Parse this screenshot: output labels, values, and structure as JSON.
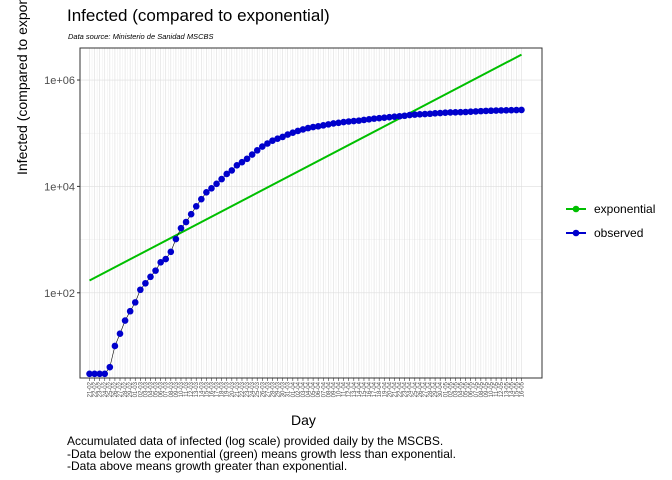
{
  "header": {
    "title": "Infected (compared to exponential)",
    "source": "Data source: Ministerio de Sanidad MSCBS"
  },
  "caption": {
    "line1": "Accumulated data of infected (log scale) provided daily by the MSCBS.",
    "line2": "-Data below the exponential (green) means growth less than exponential.",
    "line3": "-Data above means growth greater than exponential."
  },
  "chart_data": {
    "type": "line",
    "title": "Infected (compared to exponential)",
    "xlabel": "Day",
    "ylabel": "Infected (compared to exponential)",
    "yscale": "log10",
    "ylim": [
      2.5,
      4000000
    ],
    "yticks": [
      100,
      10000,
      1000000
    ],
    "ytick_labels": [
      "1e+02",
      "1e+04",
      "1e+06"
    ],
    "grid": true,
    "legend_position": "right",
    "colors": {
      "exponential": "#00bf00",
      "observed": "#0000cc"
    },
    "x_start": "2020-02-21",
    "x_end": "2020-05-16",
    "series": [
      {
        "name": "exponential",
        "x_range": [
          "2020-02-21",
          "2020-05-16"
        ],
        "y_range": [
          170,
          3000000
        ]
      },
      {
        "name": "observed",
        "x": [
          "2020-02-21",
          "2020-02-22",
          "2020-02-23",
          "2020-02-24",
          "2020-02-25",
          "2020-02-26",
          "2020-02-27",
          "2020-02-28",
          "2020-02-29",
          "2020-03-01",
          "2020-03-02",
          "2020-03-03",
          "2020-03-04",
          "2020-03-05",
          "2020-03-06",
          "2020-03-07",
          "2020-03-08",
          "2020-03-09",
          "2020-03-10",
          "2020-03-11",
          "2020-03-12",
          "2020-03-13",
          "2020-03-14",
          "2020-03-15",
          "2020-03-16",
          "2020-03-17",
          "2020-03-18",
          "2020-03-19",
          "2020-03-20",
          "2020-03-21",
          "2020-03-22",
          "2020-03-23",
          "2020-03-24",
          "2020-03-25",
          "2020-03-26",
          "2020-03-27",
          "2020-03-28",
          "2020-03-29",
          "2020-03-30",
          "2020-03-31",
          "2020-04-01",
          "2020-04-02",
          "2020-04-03",
          "2020-04-04",
          "2020-04-05",
          "2020-04-06",
          "2020-04-07",
          "2020-04-08",
          "2020-04-09",
          "2020-04-10",
          "2020-04-11",
          "2020-04-12",
          "2020-04-13",
          "2020-04-14",
          "2020-04-15",
          "2020-04-16",
          "2020-04-17",
          "2020-04-18",
          "2020-04-19",
          "2020-04-20",
          "2020-04-21",
          "2020-04-22",
          "2020-04-23",
          "2020-04-24",
          "2020-04-25",
          "2020-04-26",
          "2020-04-27",
          "2020-04-28",
          "2020-04-29",
          "2020-04-30",
          "2020-05-01",
          "2020-05-02",
          "2020-05-03",
          "2020-05-04",
          "2020-05-05",
          "2020-05-06",
          "2020-05-07",
          "2020-05-08",
          "2020-05-09",
          "2020-05-10",
          "2020-05-11",
          "2020-05-12",
          "2020-05-13",
          "2020-05-14",
          "2020-05-15",
          "2020-05-16"
        ],
        "y": [
          3,
          3,
          3,
          3,
          4,
          10,
          17,
          30,
          45,
          66,
          114,
          151,
          200,
          261,
          374,
          430,
          589,
          1024,
          1639,
          2140,
          3004,
          4231,
          5753,
          7753,
          9191,
          11178,
          13716,
          17147,
          19980,
          24926,
          28572,
          33089,
          39673,
          47610,
          56188,
          64059,
          72248,
          78797,
          85195,
          94417,
          102136,
          110238,
          117710,
          124736,
          130759,
          135032,
          140510,
          146690,
          152446,
          157022,
          161852,
          166019,
          169496,
          172541,
          177633,
          182816,
          188068,
          191726,
          195944,
          200210,
          204178,
          208389,
          213024,
          219764,
          223759,
          226629,
          229422,
          232128,
          236899,
          239639,
          242988,
          245567,
          247122,
          248301,
          250561,
          253682,
          256855,
          260117,
          262783,
          264663,
          266448,
          268143,
          269520,
          271095,
          272646,
          274367
        ]
      }
    ],
    "x_tick_labels": [
      "21-02",
      "22-02",
      "23-02",
      "24-02",
      "25-02",
      "26-02",
      "27-02",
      "28-02",
      "29-02",
      "01-03",
      "02-03",
      "03-03",
      "04-03",
      "05-03",
      "06-03",
      "07-03",
      "08-03",
      "09-03",
      "10-03",
      "11-03",
      "12-03",
      "13-03",
      "14-03",
      "15-03",
      "16-03",
      "17-03",
      "18-03",
      "19-03",
      "20-03",
      "21-03",
      "22-03",
      "23-03",
      "24-03",
      "25-03",
      "26-03",
      "27-03",
      "28-03",
      "29-03",
      "30-03",
      "31-03",
      "01-04",
      "02-04",
      "03-04",
      "04-04",
      "05-04",
      "06-04",
      "07-04",
      "08-04",
      "09-04",
      "10-04",
      "11-04",
      "12-04",
      "13-04",
      "14-04",
      "15-04",
      "16-04",
      "17-04",
      "18-04",
      "19-04",
      "20-04",
      "21-04",
      "22-04",
      "23-04",
      "24-04",
      "25-04",
      "26-04",
      "27-04",
      "28-04",
      "29-04",
      "30-04",
      "01-05",
      "02-05",
      "03-05",
      "04-05",
      "05-05",
      "06-05",
      "07-05",
      "08-05",
      "09-05",
      "10-05",
      "11-05",
      "12-05",
      "13-05",
      "14-05",
      "15-05",
      "16-05"
    ]
  }
}
